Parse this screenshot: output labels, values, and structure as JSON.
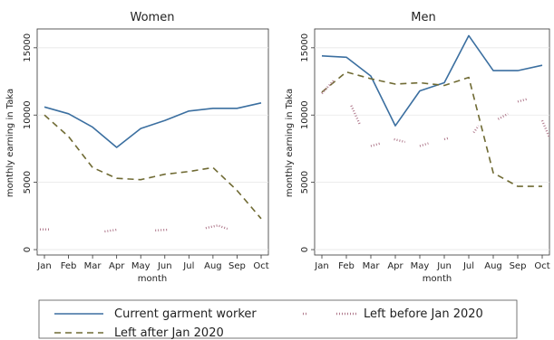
{
  "chart_data": [
    {
      "type": "line",
      "title": "Women",
      "xlabel": "month",
      "ylabel": "monthly earning in Taka",
      "categories": [
        "Jan",
        "Feb",
        "Mar",
        "Apr",
        "May",
        "Jun",
        "Jul",
        "Aug",
        "Sep",
        "Oct"
      ],
      "yticks": [
        0,
        5000,
        10000,
        15000
      ],
      "ylim": [
        -400,
        16400
      ],
      "grid": true,
      "series": [
        {
          "name": "Current garment worker",
          "color": "#3b6fa0",
          "dash": "none",
          "values": [
            10600,
            10100,
            9100,
            7600,
            9000,
            9600,
            10300,
            10500,
            10500,
            10900
          ]
        },
        {
          "name": "Left after Jan 2020",
          "color": "#6f6a33",
          "dash": "7 5",
          "values": [
            10000,
            8400,
            6100,
            5300,
            5200,
            5600,
            5800,
            6100,
            4400,
            2300
          ]
        },
        {
          "name": "Left before Jan 2020",
          "color": "#b07a8d",
          "dash": "dots",
          "segments": [
            [
              [
                0,
                1500
              ]
            ],
            [
              [
                2.5,
                1350
              ],
              [
                3,
                1480
              ]
            ],
            [
              [
                4.6,
                1430
              ],
              [
                5.15,
                1480
              ]
            ],
            [
              [
                6.7,
                1600
              ],
              [
                7.2,
                1800
              ],
              [
                7.6,
                1550
              ]
            ]
          ]
        }
      ]
    },
    {
      "type": "line",
      "title": "Men",
      "xlabel": "month",
      "ylabel": "monthly earning in Taka",
      "categories": [
        "Jan",
        "Feb",
        "Mar",
        "Apr",
        "May",
        "Jun",
        "Jul",
        "Aug",
        "Sep",
        "Oct"
      ],
      "yticks": [
        0,
        5000,
        10000,
        15000
      ],
      "ylim": [
        -400,
        16400
      ],
      "grid": true,
      "series": [
        {
          "name": "Current garment worker",
          "color": "#3b6fa0",
          "dash": "none",
          "values": [
            14400,
            14300,
            12900,
            9200,
            11800,
            12400,
            15900,
            13300,
            13300,
            13700
          ]
        },
        {
          "name": "Left after Jan 2020",
          "color": "#6f6a33",
          "dash": "7 5",
          "values": [
            11700,
            13200,
            12700,
            12300,
            12400,
            12200,
            12800,
            5700,
            4700,
            4700
          ]
        },
        {
          "name": "Left before Jan 2020",
          "color": "#b07a8d",
          "dash": "dots",
          "segments": [
            [
              [
                0,
                11600
              ],
              [
                0.5,
                12600
              ]
            ],
            [
              [
                1.2,
                10700
              ],
              [
                1.55,
                9300
              ]
            ],
            [
              [
                2.0,
                7700
              ],
              [
                2.4,
                7900
              ]
            ],
            [
              [
                2.95,
                8200
              ],
              [
                3.4,
                8000
              ]
            ],
            [
              [
                4.0,
                7700
              ],
              [
                4.35,
                7900
              ]
            ],
            [
              [
                5.0,
                8200
              ],
              [
                5.2,
                8300
              ]
            ],
            [
              [
                6.2,
                8700
              ],
              [
                6.4,
                9200
              ]
            ],
            [
              [
                7.2,
                9700
              ],
              [
                7.6,
                10100
              ]
            ],
            [
              [
                8.0,
                11000
              ],
              [
                8.4,
                11200
              ]
            ],
            [
              [
                9.0,
                9600
              ],
              [
                9.3,
                8300
              ]
            ]
          ]
        }
      ]
    }
  ],
  "legend": {
    "items": [
      {
        "label": "Current garment worker",
        "color": "#3b6fa0",
        "dash": "none"
      },
      {
        "label": "Left before Jan 2020",
        "color": "#b07a8d",
        "dash": "dots"
      },
      {
        "label": "Left after Jan 2020",
        "color": "#6f6a33",
        "dash": "7 5"
      }
    ]
  }
}
